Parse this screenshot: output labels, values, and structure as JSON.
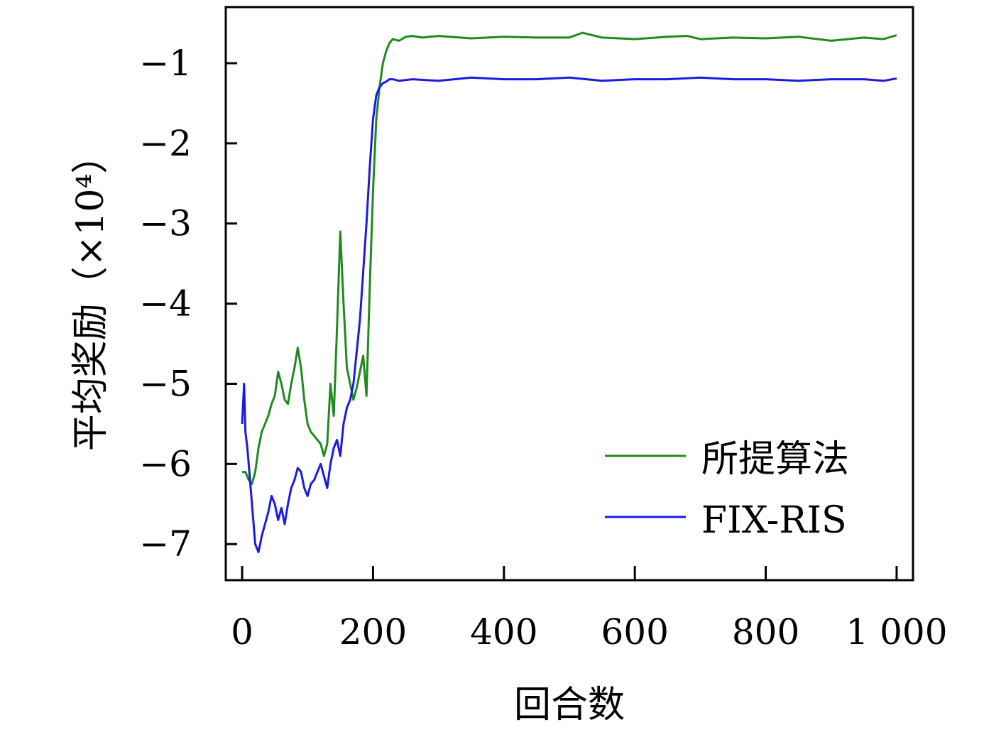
{
  "chart_data": {
    "type": "line",
    "xlabel": "回合数",
    "ylabel": "平均奖励（×10⁴）",
    "xlim": [
      -25,
      1025
    ],
    "ylim": [
      -7.45,
      -0.3
    ],
    "x_ticks": [
      0,
      200,
      400,
      600,
      800,
      1000
    ],
    "x_tick_labels": [
      "0",
      "200",
      "400",
      "600",
      "800",
      "1 000"
    ],
    "y_ticks": [
      -1,
      -2,
      -3,
      -4,
      -5,
      -6,
      -7
    ],
    "y_tick_labels": [
      "−1",
      "−2",
      "−3",
      "−4",
      "−5",
      "−6",
      "−7"
    ],
    "grid": false,
    "legend_position": "bottom-right",
    "series": [
      {
        "name": "所提算法",
        "color": "#1f8a1f",
        "x": [
          0,
          5,
          10,
          15,
          20,
          25,
          30,
          35,
          40,
          45,
          50,
          55,
          60,
          65,
          70,
          75,
          80,
          85,
          90,
          95,
          100,
          105,
          110,
          115,
          120,
          125,
          130,
          135,
          140,
          145,
          150,
          155,
          160,
          165,
          170,
          175,
          180,
          185,
          190,
          195,
          200,
          205,
          210,
          215,
          220,
          225,
          230,
          240,
          250,
          260,
          275,
          300,
          350,
          400,
          450,
          500,
          520,
          550,
          600,
          650,
          680,
          700,
          750,
          800,
          850,
          900,
          950,
          980,
          1000
        ],
        "y": [
          -6.1,
          -6.1,
          -6.2,
          -6.25,
          -6.1,
          -5.8,
          -5.6,
          -5.5,
          -5.4,
          -5.25,
          -5.15,
          -4.85,
          -5.0,
          -5.2,
          -5.25,
          -5.0,
          -4.8,
          -4.55,
          -4.8,
          -5.2,
          -5.5,
          -5.6,
          -5.65,
          -5.7,
          -5.75,
          -5.9,
          -5.75,
          -5.0,
          -5.4,
          -4.3,
          -3.1,
          -4.0,
          -4.8,
          -5.0,
          -5.2,
          -5.05,
          -4.85,
          -4.65,
          -5.15,
          -3.8,
          -2.6,
          -1.7,
          -1.3,
          -1.0,
          -0.85,
          -0.75,
          -0.7,
          -0.72,
          -0.67,
          -0.66,
          -0.68,
          -0.66,
          -0.69,
          -0.67,
          -0.68,
          -0.68,
          -0.62,
          -0.68,
          -0.7,
          -0.67,
          -0.66,
          -0.7,
          -0.68,
          -0.69,
          -0.67,
          -0.72,
          -0.68,
          -0.7,
          -0.65
        ]
      },
      {
        "name": "FIX-RIS",
        "color": "#1a1ae6",
        "x": [
          0,
          3,
          5,
          8,
          10,
          15,
          20,
          25,
          30,
          35,
          40,
          45,
          50,
          55,
          60,
          65,
          70,
          75,
          80,
          85,
          90,
          95,
          100,
          105,
          110,
          115,
          120,
          125,
          130,
          135,
          140,
          145,
          150,
          155,
          160,
          165,
          170,
          175,
          180,
          185,
          190,
          195,
          200,
          205,
          210,
          215,
          220,
          225,
          230,
          240,
          260,
          300,
          350,
          400,
          450,
          500,
          550,
          600,
          650,
          700,
          750,
          800,
          850,
          900,
          950,
          980,
          1000
        ],
        "y": [
          -5.5,
          -5.0,
          -5.6,
          -5.8,
          -6.0,
          -6.5,
          -7.0,
          -7.1,
          -6.9,
          -6.75,
          -6.6,
          -6.4,
          -6.5,
          -6.7,
          -6.55,
          -6.75,
          -6.5,
          -6.3,
          -6.2,
          -6.05,
          -6.1,
          -6.3,
          -6.4,
          -6.25,
          -6.2,
          -6.1,
          -6.0,
          -6.15,
          -6.3,
          -6.0,
          -5.8,
          -5.7,
          -5.9,
          -5.5,
          -5.3,
          -5.2,
          -5.0,
          -4.6,
          -4.2,
          -3.6,
          -3.0,
          -2.3,
          -1.7,
          -1.4,
          -1.3,
          -1.25,
          -1.23,
          -1.2,
          -1.2,
          -1.22,
          -1.2,
          -1.22,
          -1.18,
          -1.2,
          -1.2,
          -1.18,
          -1.22,
          -1.2,
          -1.2,
          -1.18,
          -1.2,
          -1.2,
          -1.22,
          -1.2,
          -1.2,
          -1.22,
          -1.19
        ]
      }
    ]
  }
}
